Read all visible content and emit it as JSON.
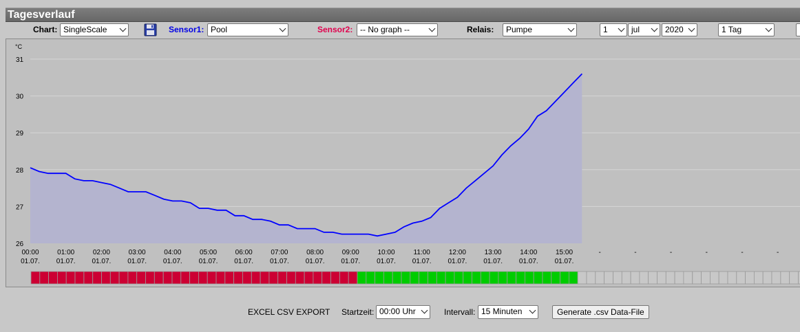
{
  "window": {
    "title": "Tagesverlauf"
  },
  "toolbar": {
    "chart_label": "Chart:",
    "chart_value": "SingleScale",
    "sensor1_label": "Sensor1:",
    "sensor1_value": "Pool",
    "sensor1_color": "#0000e6",
    "sensor2_label": "Sensor2:",
    "sensor2_value": "-- No graph --",
    "sensor2_color": "#e0004d",
    "relais_label": "Relais:",
    "relais_value": "Pumpe",
    "day_value": "1",
    "month_value": "jul",
    "year_value": "2020",
    "range_value": "1 Tag"
  },
  "chart_data": {
    "type": "area",
    "unit_label": "°C",
    "ylim": [
      26,
      31
    ],
    "yticks": [
      "26",
      "27",
      "28",
      "29",
      "30",
      "31"
    ],
    "x_tick_times": [
      "00:00",
      "01:00",
      "02:00",
      "03:00",
      "04:00",
      "05:00",
      "06:00",
      "07:00",
      "08:00",
      "09:00",
      "10:00",
      "11:00",
      "12:00",
      "13:00",
      "14:00",
      "15:00"
    ],
    "x_tick_dates": [
      "01.07.",
      "01.07.",
      "01.07.",
      "01.07.",
      "01.07.",
      "01.07.",
      "01.07.",
      "01.07.",
      "01.07.",
      "01.07.",
      "01.07.",
      "01.07.",
      "01.07.",
      "01.07.",
      "01.07.",
      "01.07."
    ],
    "x_placeholder_ticks": [
      "-",
      "-",
      "-",
      "-",
      "-",
      "-"
    ],
    "x_hours": [
      0,
      0.25,
      0.5,
      0.75,
      1,
      1.25,
      1.5,
      1.75,
      2,
      2.25,
      2.5,
      2.75,
      3,
      3.25,
      3.5,
      3.75,
      4,
      4.25,
      4.5,
      4.75,
      5,
      5.25,
      5.5,
      5.75,
      6,
      6.25,
      6.5,
      6.75,
      7,
      7.25,
      7.5,
      7.75,
      8,
      8.25,
      8.5,
      8.75,
      9,
      9.25,
      9.5,
      9.75,
      10,
      10.25,
      10.5,
      10.75,
      11,
      11.25,
      11.5,
      11.75,
      12,
      12.25,
      12.5,
      12.75,
      13,
      13.25,
      13.5,
      13.75,
      14,
      14.25,
      14.5,
      14.75,
      15,
      15.25,
      15.5
    ],
    "series": [
      {
        "color": "#0000ff",
        "fill": "#b4b4cf",
        "values": [
          28.05,
          27.95,
          27.9,
          27.9,
          27.9,
          27.75,
          27.7,
          27.7,
          27.65,
          27.6,
          27.5,
          27.4,
          27.4,
          27.4,
          27.3,
          27.2,
          27.15,
          27.15,
          27.1,
          26.95,
          26.95,
          26.9,
          26.9,
          26.75,
          26.75,
          26.65,
          26.65,
          26.6,
          26.5,
          26.5,
          26.4,
          26.4,
          26.4,
          26.3,
          26.3,
          26.25,
          26.25,
          26.25,
          26.25,
          26.2,
          26.25,
          26.3,
          26.45,
          26.55,
          26.6,
          26.7,
          26.95,
          27.1,
          27.25,
          27.5,
          27.7,
          27.9,
          28.1,
          28.4,
          28.65,
          28.85,
          29.1,
          29.45,
          29.6,
          29.85,
          30.1,
          30.35,
          30.6
        ]
      }
    ],
    "relais_bar": {
      "slots": 96,
      "on_color": "#00cc00",
      "off_color": "#cc0033",
      "empty_color": "#c8c8c8",
      "off_slots": 37,
      "on_slots": 25
    }
  },
  "export": {
    "title": "EXCEL CSV EXPORT",
    "start_label": "Startzeit:",
    "start_value": "00:00 Uhr",
    "interval_label": "Intervall:",
    "interval_value": "15 Minuten",
    "generate_label": "Generate .csv Data-File"
  }
}
